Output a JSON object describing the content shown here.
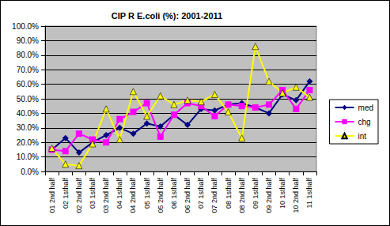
{
  "chart_data": {
    "type": "line",
    "title": "CIP R E.coli (%): 2001-2011",
    "categories": [
      "01 2nd half",
      "02 1sthalf",
      "02 2nd half",
      "03 1sthalf",
      "03 2nd half",
      "04 1sthalf",
      "04 2nd half",
      "05 1sthalf",
      "05 2nd half",
      "06 1sthalf",
      "06 2nd half",
      "07 1sthalf",
      "07 2nd half",
      "08 1sthalf",
      "08 2nd half",
      "09 1sthalf",
      "09 2nd half",
      "10 1sthalf",
      "10 2nd half",
      "11 1sthalf"
    ],
    "series": [
      {
        "name": "med",
        "color": "#000080",
        "marker": "diamond",
        "values": [
          15,
          23,
          13,
          20,
          25,
          30,
          26,
          33,
          31,
          39,
          32,
          43,
          42,
          46,
          47,
          44,
          40,
          53,
          49,
          62
        ]
      },
      {
        "name": "chg",
        "color": "#FF00FF",
        "marker": "square",
        "values": [
          15,
          14,
          26,
          22,
          20,
          36,
          41,
          47,
          24,
          39,
          47,
          45,
          38,
          46,
          45,
          44,
          46,
          56,
          43,
          56
        ]
      },
      {
        "name": "int",
        "color": "#FFFF00",
        "marker": "triangle",
        "values": [
          16,
          5,
          4,
          19,
          43,
          22,
          55,
          38,
          52,
          46,
          49,
          48,
          53,
          41,
          23,
          86,
          62,
          54,
          58,
          51
        ]
      }
    ],
    "ylim": [
      0,
      100
    ],
    "yticks": [
      {
        "value": 0,
        "label": "0.0%"
      },
      {
        "value": 10,
        "label": "10.0%"
      },
      {
        "value": 20,
        "label": "20.0%"
      },
      {
        "value": 30,
        "label": "30.0%"
      },
      {
        "value": 40,
        "label": "40.0%"
      },
      {
        "value": 50,
        "label": "50.0%"
      },
      {
        "value": 60,
        "label": "60.0%"
      },
      {
        "value": 70,
        "label": "70.0%"
      },
      {
        "value": 80,
        "label": "80.0%"
      },
      {
        "value": 90,
        "label": "90.0%"
      },
      {
        "value": 100,
        "label": "100.0%"
      }
    ],
    "grid": true,
    "legend": "right"
  }
}
